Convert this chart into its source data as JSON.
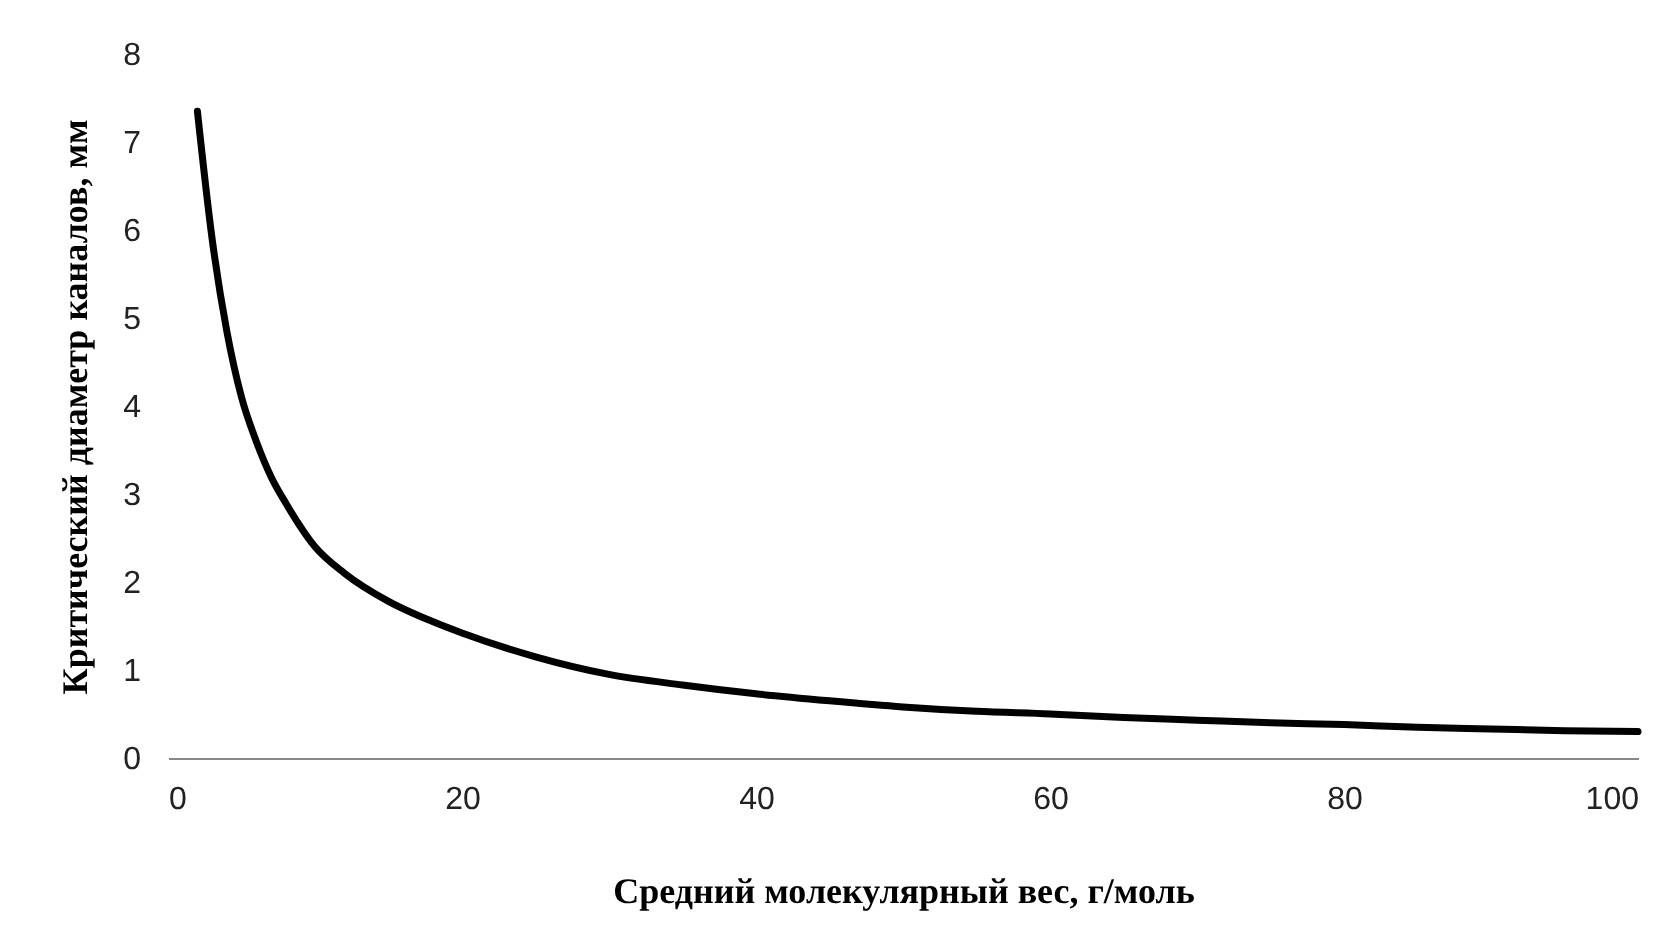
{
  "chart_data": {
    "type": "line",
    "xlabel": "Средний молекулярный вес, г/моль",
    "ylabel": "Критический диаметр каналов, мм",
    "x": [
      2,
      3,
      4,
      5,
      6,
      7,
      8,
      10,
      12,
      15,
      18,
      20,
      25,
      30,
      35,
      40,
      45,
      50,
      55,
      60,
      65,
      70,
      75,
      80,
      85,
      90,
      95,
      100
    ],
    "series": [
      {
        "color": "#000000",
        "values": [
          7.35,
          5.9,
          4.85,
          4.1,
          3.6,
          3.2,
          2.9,
          2.4,
          2.1,
          1.78,
          1.55,
          1.42,
          1.15,
          0.95,
          0.83,
          0.73,
          0.65,
          0.58,
          0.53,
          0.5,
          0.46,
          0.43,
          0.4,
          0.38,
          0.35,
          0.33,
          0.31,
          0.3
        ]
      }
    ],
    "xlim": [
      0,
      100
    ],
    "xticks": [
      0,
      20,
      40,
      60,
      80,
      100
    ],
    "ylim": [
      0,
      8
    ],
    "yticks": [
      0,
      1,
      2,
      3,
      4,
      5,
      6,
      7,
      8
    ],
    "grid": false,
    "legend": false,
    "marker": "none",
    "line_style": "solid"
  }
}
